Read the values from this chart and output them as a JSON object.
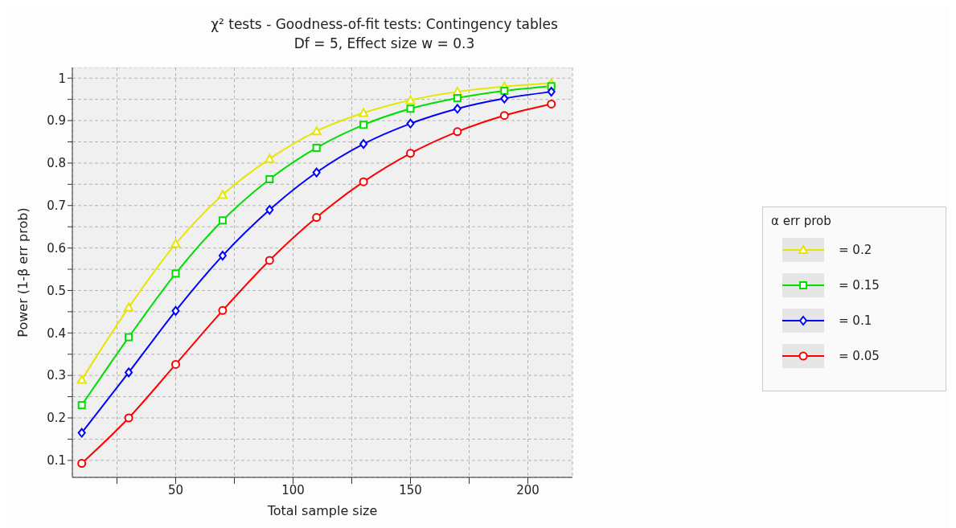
{
  "chart_data": {
    "type": "line",
    "title": "χ² tests - Goodness-of-fit tests: Contingency tables",
    "subtitle": "Df = 5, Effect size w = 0.3",
    "xlabel": "Total sample size",
    "ylabel": "Power (1-β err prob)",
    "legend_title": "α err prob",
    "legend": "right",
    "grid": true,
    "x": [
      10,
      30,
      50,
      70,
      90,
      110,
      130,
      150,
      170,
      190,
      210
    ],
    "xlim": [
      6,
      219
    ],
    "xticks": [
      {
        "value": 25,
        "label": null
      },
      50,
      {
        "value": 75,
        "label": null
      },
      100,
      {
        "value": 125,
        "label": null
      },
      150,
      {
        "value": 175,
        "label": null
      },
      200
    ],
    "ylim": [
      0.06,
      1.025
    ],
    "yticks": [
      0.1,
      {
        "value": 0.15,
        "label": null
      },
      0.2,
      {
        "value": 0.25,
        "label": null
      },
      0.3,
      {
        "value": 0.35,
        "label": null
      },
      0.4,
      {
        "value": 0.45,
        "label": null
      },
      0.5,
      {
        "value": 0.55,
        "label": null
      },
      0.6,
      {
        "value": 0.65,
        "label": null
      },
      0.7,
      {
        "value": 0.75,
        "label": null
      },
      0.8,
      {
        "value": 0.85,
        "label": null
      },
      0.9,
      {
        "value": 0.95,
        "label": null
      },
      1
    ],
    "series": [
      {
        "name": "= 0.2",
        "color": "#e6e600",
        "marker": "triangle",
        "values": [
          0.29,
          0.46,
          0.61,
          0.725,
          0.81,
          0.875,
          0.918,
          0.948,
          0.968,
          0.98,
          0.988
        ]
      },
      {
        "name": "= 0.15",
        "color": "#00dd00",
        "marker": "square",
        "values": [
          0.23,
          0.39,
          0.54,
          0.665,
          0.762,
          0.836,
          0.89,
          0.928,
          0.953,
          0.97,
          0.981
        ]
      },
      {
        "name": "= 0.1",
        "color": "#0000ff",
        "marker": "diamond",
        "values": [
          0.165,
          0.307,
          0.452,
          0.582,
          0.69,
          0.778,
          0.845,
          0.893,
          0.928,
          0.952,
          0.968
        ]
      },
      {
        "name": "= 0.05",
        "color": "#ff0000",
        "marker": "circle",
        "values": [
          0.093,
          0.2,
          0.326,
          0.453,
          0.571,
          0.672,
          0.756,
          0.823,
          0.874,
          0.912,
          0.939
        ]
      }
    ]
  }
}
